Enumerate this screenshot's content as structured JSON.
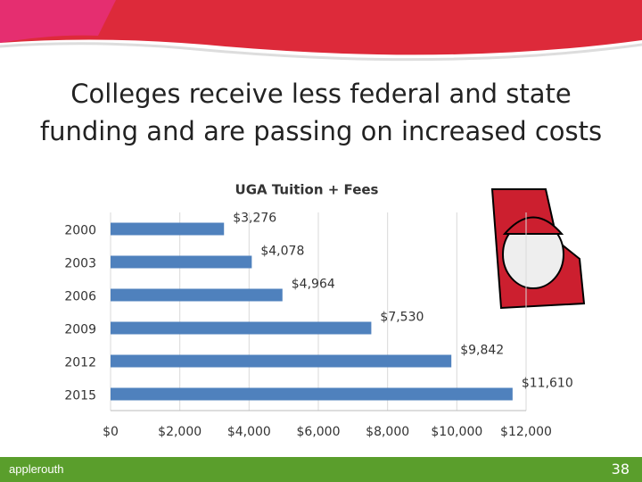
{
  "slide": {
    "title": "Colleges receive less federal and state funding and are passing on increased costs",
    "footer": "applerouth",
    "page_number": "38"
  },
  "chart_data": {
    "type": "bar",
    "orientation": "horizontal",
    "title": "UGA Tuition + Fees",
    "categories": [
      "2000",
      "2003",
      "2006",
      "2009",
      "2012",
      "2015"
    ],
    "values": [
      3276,
      4078,
      4964,
      7530,
      9842,
      11610
    ],
    "value_labels": [
      "$3,276",
      "$4,078",
      "$4,964",
      "$7,530",
      "$9,842",
      "$11,610"
    ],
    "color": "#4f81bd",
    "xlim": [
      0,
      12000
    ],
    "xticks": [
      {
        "value": 0,
        "label": "$0"
      },
      {
        "value": 2000,
        "label": "$2,000"
      },
      {
        "value": 4000,
        "label": "$4,000"
      },
      {
        "value": 6000,
        "label": "$6,000"
      },
      {
        "value": 8000,
        "label": "$8,000"
      },
      {
        "value": 10000,
        "label": "$10,000"
      },
      {
        "value": 12000,
        "label": "$12,000"
      }
    ],
    "grid": true
  }
}
